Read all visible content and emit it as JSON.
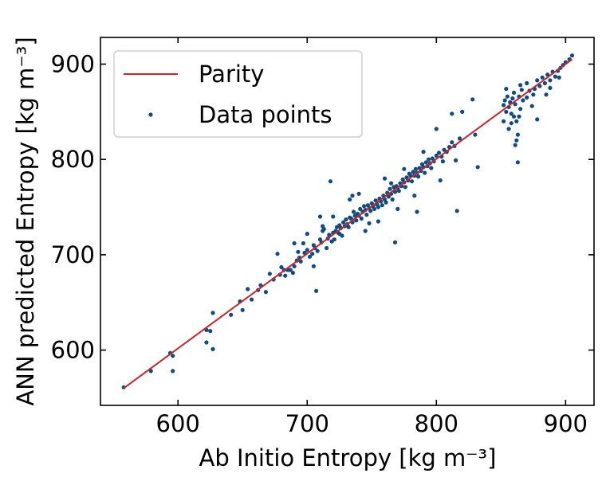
{
  "chart_data": {
    "type": "scatter",
    "title": "",
    "xlabel": "Ab Initio Entropy [kg m⁻³]",
    "ylabel": "ANN predicted Entropy [kg m⁻³]",
    "xlim": [
      540,
      922
    ],
    "ylim": [
      542,
      928
    ],
    "xticks": [
      600,
      700,
      800,
      900
    ],
    "yticks": [
      600,
      700,
      800,
      900
    ],
    "grid": false,
    "legend_position": "upper-left",
    "legend": [
      {
        "label": "Parity",
        "kind": "line",
        "color": "#c9252c"
      },
      {
        "label": "Data points",
        "kind": "marker",
        "color": "#0f4c81"
      }
    ],
    "parity": {
      "from": [
        558,
        560
      ],
      "to": [
        905,
        905
      ],
      "color": "#c9252c"
    },
    "series": [
      {
        "name": "Data points",
        "color": "#0f4c81",
        "points": [
          [
            558,
            561
          ],
          [
            579,
            578
          ],
          [
            594,
            597
          ],
          [
            596,
            578
          ],
          [
            596,
            594
          ],
          [
            622,
            608
          ],
          [
            622,
            621
          ],
          [
            625,
            620
          ],
          [
            627,
            639
          ],
          [
            627,
            601
          ],
          [
            641,
            637
          ],
          [
            648,
            651
          ],
          [
            650,
            642
          ],
          [
            654,
            664
          ],
          [
            657,
            653
          ],
          [
            662,
            663
          ],
          [
            664,
            668
          ],
          [
            668,
            661
          ],
          [
            671,
            680
          ],
          [
            674,
            674
          ],
          [
            677,
            701
          ],
          [
            679,
            679
          ],
          [
            680,
            687
          ],
          [
            682,
            684
          ],
          [
            683,
            678
          ],
          [
            685,
            684
          ],
          [
            687,
            684
          ],
          [
            689,
            681
          ],
          [
            690,
            688
          ],
          [
            692,
            694
          ],
          [
            693,
            703
          ],
          [
            694,
            697
          ],
          [
            695,
            693
          ],
          [
            697,
            712
          ],
          [
            698,
            702
          ],
          [
            700,
            705
          ],
          [
            702,
            698
          ],
          [
            704,
            701
          ],
          [
            705,
            710
          ],
          [
            706,
            707
          ],
          [
            707,
            662
          ],
          [
            708,
            704
          ],
          [
            710,
            716
          ],
          [
            711,
            713
          ],
          [
            712,
            725
          ],
          [
            713,
            727
          ],
          [
            715,
            707
          ],
          [
            716,
            717
          ],
          [
            717,
            721
          ],
          [
            718,
            777
          ],
          [
            719,
            714
          ],
          [
            720,
            723
          ],
          [
            721,
            716
          ],
          [
            722,
            725
          ],
          [
            723,
            729
          ],
          [
            724,
            723
          ],
          [
            725,
            731
          ],
          [
            726,
            728
          ],
          [
            727,
            720
          ],
          [
            728,
            734
          ],
          [
            729,
            730
          ],
          [
            730,
            737
          ],
          [
            731,
            732
          ],
          [
            732,
            729
          ],
          [
            733,
            739
          ],
          [
            734,
            738
          ],
          [
            735,
            734
          ],
          [
            736,
            745
          ],
          [
            737,
            741
          ],
          [
            738,
            736
          ],
          [
            739,
            743
          ],
          [
            740,
            741
          ],
          [
            741,
            748
          ],
          [
            742,
            738
          ],
          [
            743,
            745
          ],
          [
            744,
            751
          ],
          [
            745,
            747
          ],
          [
            746,
            742
          ],
          [
            747,
            752
          ],
          [
            748,
            749
          ],
          [
            749,
            746
          ],
          [
            750,
            754
          ],
          [
            751,
            751
          ],
          [
            752,
            748
          ],
          [
            753,
            757
          ],
          [
            754,
            753
          ],
          [
            755,
            750
          ],
          [
            756,
            759
          ],
          [
            757,
            756
          ],
          [
            758,
            752
          ],
          [
            759,
            762
          ],
          [
            760,
            758
          ],
          [
            761,
            755
          ],
          [
            762,
            765
          ],
          [
            763,
            761
          ],
          [
            764,
            769
          ],
          [
            765,
            764
          ],
          [
            766,
            758
          ],
          [
            767,
            771
          ],
          [
            768,
            766
          ],
          [
            769,
            772
          ],
          [
            770,
            770
          ],
          [
            771,
            767
          ],
          [
            772,
            775
          ],
          [
            773,
            772
          ],
          [
            774,
            779
          ],
          [
            775,
            776
          ],
          [
            776,
            771
          ],
          [
            777,
            781
          ],
          [
            778,
            778
          ],
          [
            779,
            785
          ],
          [
            780,
            783
          ],
          [
            781,
            777
          ],
          [
            782,
            787
          ],
          [
            783,
            783
          ],
          [
            784,
            790
          ],
          [
            785,
            786
          ],
          [
            786,
            782
          ],
          [
            787,
            791
          ],
          [
            788,
            788
          ],
          [
            789,
            795
          ],
          [
            790,
            792
          ],
          [
            791,
            786
          ],
          [
            792,
            797
          ],
          [
            793,
            793
          ],
          [
            794,
            800
          ],
          [
            795,
            796
          ],
          [
            796,
            791
          ],
          [
            797,
            801
          ],
          [
            798,
            798
          ],
          [
            800,
            804
          ],
          [
            802,
            807
          ],
          [
            804,
            803
          ],
          [
            806,
            810
          ],
          [
            808,
            808
          ],
          [
            810,
            813
          ],
          [
            812,
            818
          ],
          [
            814,
            814
          ],
          [
            816,
            746
          ],
          [
            818,
            822
          ],
          [
            700,
            722
          ],
          [
            705,
            688
          ],
          [
            712,
            730
          ],
          [
            720,
            740
          ],
          [
            725,
            722
          ],
          [
            733,
            758
          ],
          [
            740,
            764
          ],
          [
            748,
            733
          ],
          [
            755,
            735
          ],
          [
            760,
            780
          ],
          [
            768,
            713
          ],
          [
            770,
            748
          ],
          [
            775,
            790
          ],
          [
            783,
            762
          ],
          [
            790,
            808
          ],
          [
            800,
            832
          ],
          [
            805,
            798
          ],
          [
            812,
            848
          ],
          [
            815,
            799
          ],
          [
            820,
            850
          ],
          [
            830,
            826
          ],
          [
            832,
            792
          ],
          [
            828,
            863
          ],
          [
            803,
            778
          ],
          [
            785,
            745
          ],
          [
            765,
            775
          ],
          [
            745,
            725
          ],
          [
            735,
            762
          ],
          [
            710,
            740
          ],
          [
            690,
            712
          ],
          [
            852,
            857
          ],
          [
            853,
            862
          ],
          [
            854,
            850
          ],
          [
            855,
            866
          ],
          [
            856,
            855
          ],
          [
            857,
            860
          ],
          [
            858,
            848
          ],
          [
            859,
            864
          ],
          [
            860,
            870
          ],
          [
            861,
            858
          ],
          [
            862,
            840
          ],
          [
            863,
            826
          ],
          [
            864,
            866
          ],
          [
            865,
            853
          ],
          [
            866,
            873
          ],
          [
            867,
            862
          ],
          [
            856,
            832
          ],
          [
            858,
            838
          ],
          [
            860,
            845
          ],
          [
            861,
            815
          ],
          [
            862,
            820
          ],
          [
            863,
            797
          ],
          [
            864,
            845
          ],
          [
            865,
            878
          ],
          [
            854,
            874
          ],
          [
            852,
            840
          ],
          [
            870,
            865
          ],
          [
            872,
            872
          ],
          [
            874,
            856
          ],
          [
            876,
            874
          ],
          [
            878,
            883
          ],
          [
            880,
            877
          ],
          [
            882,
            886
          ],
          [
            884,
            880
          ],
          [
            886,
            889
          ],
          [
            888,
            883
          ],
          [
            890,
            892
          ],
          [
            892,
            887
          ],
          [
            894,
            893
          ],
          [
            896,
            896
          ],
          [
            898,
            899
          ],
          [
            900,
            902
          ],
          [
            903,
            905
          ],
          [
            905,
            909
          ],
          [
            885,
            868
          ],
          [
            878,
            842
          ],
          [
            870,
            880
          ],
          [
            875,
            868
          ],
          [
            895,
            886
          ],
          [
            888,
            875
          ]
        ]
      }
    ]
  }
}
